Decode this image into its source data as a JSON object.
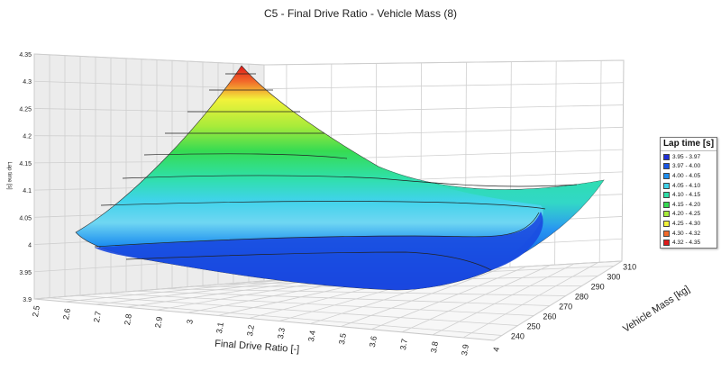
{
  "chart_data": {
    "type": "surface3d",
    "title": "C5 - Final Drive Ratio - Vehicle Mass (8)",
    "xlabel": "Final Drive Ratio [-]",
    "ylabel": "Vehicle Mass [kg]",
    "zlabel": "Lap time [s]",
    "x_ticks": [
      "2.5",
      "2.6",
      "2.7",
      "2.8",
      "2.9",
      "3",
      "3.1",
      "3.2",
      "3.3",
      "3.4",
      "3.5",
      "3.6",
      "3.7",
      "3.8",
      "3.9",
      "4"
    ],
    "y_ticks": [
      "240",
      "250",
      "260",
      "270",
      "280",
      "290",
      "300",
      "310"
    ],
    "z_ticks": [
      "3.9",
      "3.95",
      "4",
      "4.05",
      "4.1",
      "4.15",
      "4.2",
      "4.25",
      "4.3",
      "4.35"
    ],
    "xlim": [
      2.5,
      4.0
    ],
    "ylim": [
      235,
      315
    ],
    "zlim": [
      3.9,
      4.35
    ],
    "legend": {
      "title": "Lap time [s]",
      "placement": "right",
      "entries": [
        {
          "label": "3.95 - 3.97",
          "color": "#1f2fd9"
        },
        {
          "label": "3.97 - 4.00",
          "color": "#1756e6"
        },
        {
          "label": "4.00 - 4.05",
          "color": "#1e8ff0"
        },
        {
          "label": "4.05 - 4.10",
          "color": "#3fd3ea"
        },
        {
          "label": "4.10 - 4.15",
          "color": "#2fe0a8"
        },
        {
          "label": "4.15 - 4.20",
          "color": "#36db52"
        },
        {
          "label": "4.20 - 4.25",
          "color": "#a8eb3a"
        },
        {
          "label": "4.25 - 4.30",
          "color": "#f2f23a"
        },
        {
          "label": "4.30 - 4.32",
          "color": "#f26a2a"
        },
        {
          "label": "4.32 - 4.35",
          "color": "#e01818"
        }
      ]
    }
  }
}
